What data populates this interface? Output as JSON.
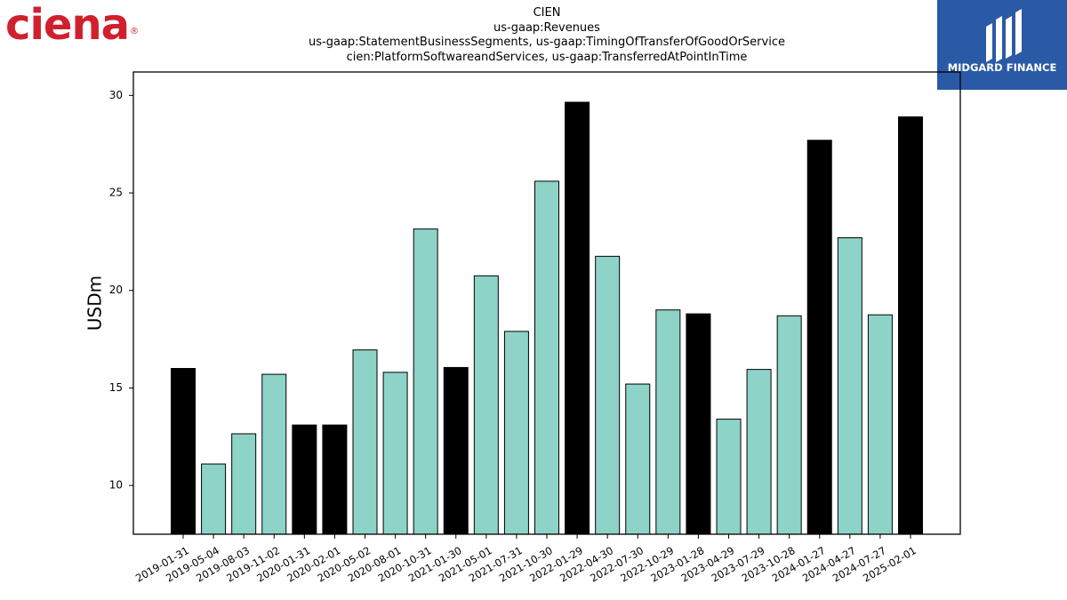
{
  "logos": {
    "left": "ciena",
    "right": "MIDGARD FINANCE"
  },
  "chart_data": {
    "type": "bar",
    "title_lines": [
      "CIEN",
      "us-gaap:Revenues",
      "us-gaap:StatementBusinessSegments, us-gaap:TimingOfTransferOfGoodOrService",
      "cien:PlatformSoftwareandServices, us-gaap:TransferredAtPointInTime"
    ],
    "ylabel": "USDm",
    "xlabel": "",
    "ylim": [
      7.5,
      31.2
    ],
    "yticks": [
      10,
      15,
      20,
      25,
      30
    ],
    "grid": false,
    "colors": {
      "quarter": "#8dd3c7",
      "annual": "#000000"
    },
    "categories": [
      "2019-01-31",
      "2019-05-04",
      "2019-08-03",
      "2019-11-02",
      "2020-01-31",
      "2020-02-01",
      "2020-05-02",
      "2020-08-01",
      "2020-10-31",
      "2021-01-30",
      "2021-05-01",
      "2021-07-31",
      "2021-10-30",
      "2022-01-29",
      "2022-04-30",
      "2022-07-30",
      "2022-10-29",
      "2023-01-28",
      "2023-04-29",
      "2023-07-29",
      "2023-10-28",
      "2024-01-27",
      "2024-04-27",
      "2024-07-27",
      "2025-02-01"
    ],
    "values": [
      16.0,
      11.1,
      12.65,
      15.7,
      13.1,
      13.1,
      16.95,
      15.8,
      23.15,
      16.05,
      20.75,
      17.9,
      25.6,
      29.65,
      21.75,
      15.2,
      19.0,
      18.8,
      13.4,
      15.95,
      18.7,
      27.7,
      22.7,
      18.75,
      28.9
    ],
    "highlight": [
      true,
      false,
      false,
      false,
      true,
      true,
      false,
      false,
      false,
      true,
      false,
      false,
      false,
      true,
      false,
      false,
      false,
      true,
      false,
      false,
      false,
      true,
      false,
      false,
      true
    ]
  }
}
